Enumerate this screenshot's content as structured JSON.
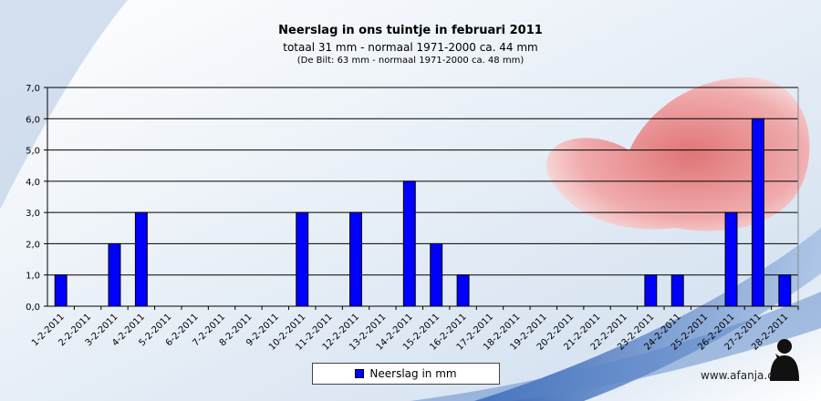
{
  "title": "Neerslag  in  ons  tuintje  in  februari  2011",
  "subtitle": "totaal 31  mm   -  normaal   1971-2000  ca.  44  mm",
  "subtitle2": "(De Bilt: 63 mm - normaal 1971-2000 ca. 48 mm)",
  "watermark": "www.afanja.com",
  "colors": {
    "bar": "#0000ff",
    "grid": "#000000"
  },
  "chart_data": {
    "type": "bar",
    "categories": [
      "1-2-2011",
      "2-2-2011",
      "3-2-2011",
      "4-2-2011",
      "5-2-2011",
      "6-2-2011",
      "7-2-2011",
      "8-2-2011",
      "9-2-2011",
      "10-2-2011",
      "11-2-2011",
      "12-2-2011",
      "13-2-2011",
      "14-2-2011",
      "15-2-2011",
      "16-2-2011",
      "17-2-2011",
      "18-2-2011",
      "19-2-2011",
      "20-2-2011",
      "21-2-2011",
      "22-2-2011",
      "23-2-2011",
      "24-2-2011",
      "25-2-2011",
      "26-2-2011",
      "27-2-2011",
      "28-2-2011"
    ],
    "series": [
      {
        "name": "Neerslag in mm",
        "values": [
          1,
          0,
          2,
          3,
          0,
          0,
          0,
          0,
          0,
          3,
          0,
          3,
          0,
          4,
          2,
          1,
          0,
          0,
          0,
          0,
          0,
          0,
          1,
          1,
          0,
          3,
          6,
          1
        ]
      }
    ],
    "ylim": [
      0,
      7
    ],
    "yticks": [
      "0,0",
      "1,0",
      "2,0",
      "3,0",
      "4,0",
      "5,0",
      "6,0",
      "7,0"
    ],
    "grid": true,
    "legend": "bottom-center"
  }
}
